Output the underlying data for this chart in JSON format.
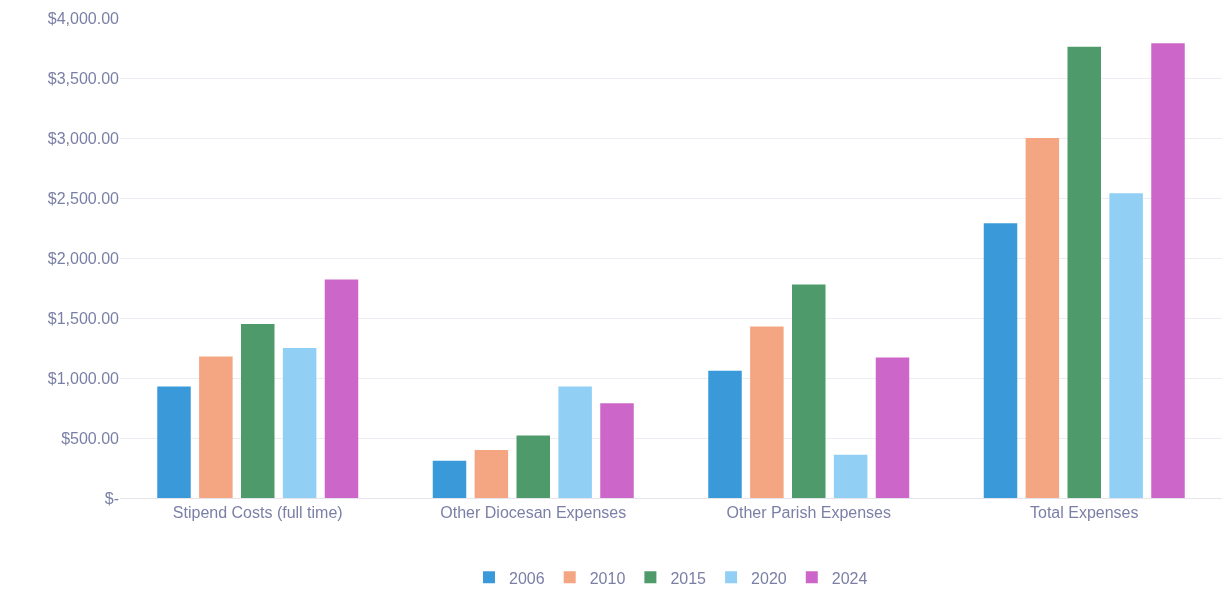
{
  "chart_data": {
    "type": "bar",
    "categories": [
      "Stipend Costs (full time)",
      "Other Diocesan Expenses",
      "Other Parish Expenses",
      "Total Expenses"
    ],
    "series": [
      {
        "name": "2006",
        "color": "#3a9ad9",
        "values": [
          930,
          310,
          1060,
          2290
        ]
      },
      {
        "name": "2010",
        "color": "#f4a582",
        "values": [
          1180,
          400,
          1430,
          3000
        ]
      },
      {
        "name": "2015",
        "color": "#4f9a6b",
        "values": [
          1450,
          520,
          1780,
          3760
        ]
      },
      {
        "name": "2020",
        "color": "#91cff5",
        "values": [
          1250,
          930,
          360,
          2540
        ]
      },
      {
        "name": "2024",
        "color": "#cc66c8",
        "values": [
          1820,
          790,
          1170,
          3790
        ]
      }
    ],
    "ylim": [
      0,
      4000
    ],
    "yticks": [
      {
        "value": 0,
        "label": "$-"
      },
      {
        "value": 500,
        "label": "$500.00"
      },
      {
        "value": 1000,
        "label": "$1,000.00"
      },
      {
        "value": 1500,
        "label": "$1,500.00"
      },
      {
        "value": 2000,
        "label": "$2,000.00"
      },
      {
        "value": 2500,
        "label": "$2,500.00"
      },
      {
        "value": 3000,
        "label": "$3,000.00"
      },
      {
        "value": 3500,
        "label": "$3,500.00"
      },
      {
        "value": 4000,
        "label": "$4,000.00"
      }
    ],
    "grid": "y",
    "legend": "bottom"
  }
}
